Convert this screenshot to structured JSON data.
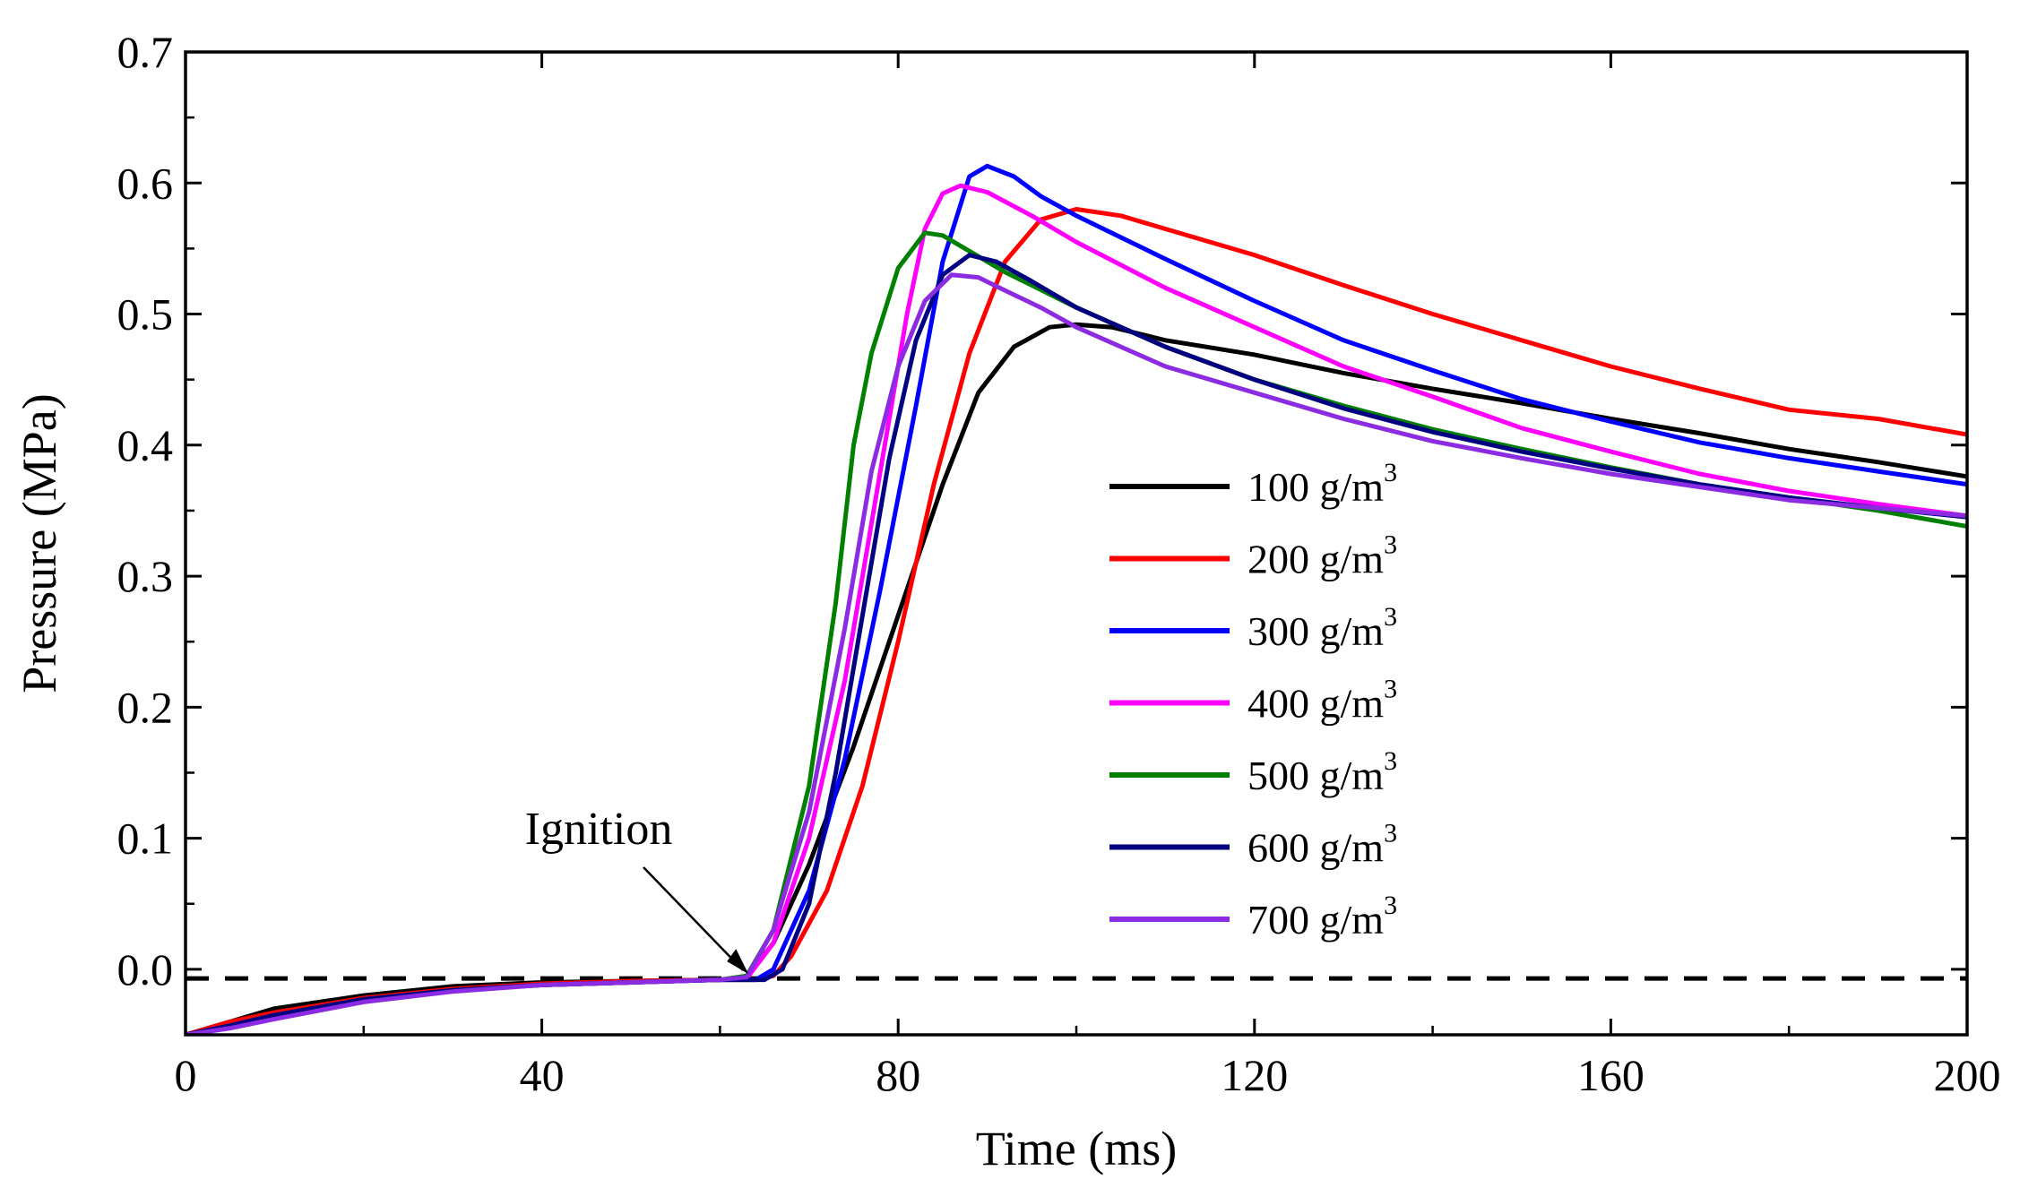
{
  "chart_data": {
    "type": "line",
    "title": "",
    "xlabel": "Time (ms)",
    "ylabel": "Pressure (MPa)",
    "xlim": [
      0,
      200
    ],
    "ylim": [
      -0.05,
      0.7
    ],
    "x_ticks": [
      0,
      40,
      80,
      120,
      160,
      200
    ],
    "x_tick_labels": [
      "0",
      "40",
      "80",
      "120",
      "160",
      "200"
    ],
    "y_ticks": [
      0.0,
      0.1,
      0.2,
      0.3,
      0.4,
      0.5,
      0.6,
      0.7
    ],
    "y_tick_labels": [
      "0.0",
      "0.1",
      "0.2",
      "0.3",
      "0.4",
      "0.5",
      "0.6",
      "0.7"
    ],
    "grid": false,
    "legend_position": "center-right",
    "legend_unit_base": "g/m",
    "legend_unit_sup": "3",
    "reference_line": {
      "y": -0.007,
      "style": "dashed",
      "color": "#000000"
    },
    "annotation": {
      "text": "Ignition",
      "x": 63,
      "y": -0.005
    },
    "series": [
      {
        "name": "100",
        "color": "#000000",
        "points": [
          [
            0,
            -0.05
          ],
          [
            5,
            -0.04
          ],
          [
            10,
            -0.03
          ],
          [
            20,
            -0.02
          ],
          [
            30,
            -0.013
          ],
          [
            40,
            -0.01
          ],
          [
            50,
            -0.009
          ],
          [
            60,
            -0.008
          ],
          [
            63,
            -0.006
          ],
          [
            66,
            0.02
          ],
          [
            70,
            0.08
          ],
          [
            75,
            0.17
          ],
          [
            80,
            0.27
          ],
          [
            85,
            0.37
          ],
          [
            89,
            0.44
          ],
          [
            93,
            0.475
          ],
          [
            97,
            0.49
          ],
          [
            100,
            0.492
          ],
          [
            104,
            0.49
          ],
          [
            110,
            0.48
          ],
          [
            120,
            0.469
          ],
          [
            130,
            0.455
          ],
          [
            140,
            0.443
          ],
          [
            150,
            0.432
          ],
          [
            160,
            0.42
          ],
          [
            170,
            0.409
          ],
          [
            180,
            0.397
          ],
          [
            190,
            0.387
          ],
          [
            200,
            0.376
          ]
        ]
      },
      {
        "name": "200",
        "color": "#ff0000",
        "points": [
          [
            0,
            -0.05
          ],
          [
            5,
            -0.04
          ],
          [
            10,
            -0.033
          ],
          [
            20,
            -0.022
          ],
          [
            30,
            -0.015
          ],
          [
            40,
            -0.011
          ],
          [
            50,
            -0.009
          ],
          [
            60,
            -0.008
          ],
          [
            64,
            -0.008
          ],
          [
            66,
            -0.005
          ],
          [
            68,
            0.01
          ],
          [
            72,
            0.06
          ],
          [
            76,
            0.14
          ],
          [
            80,
            0.25
          ],
          [
            84,
            0.37
          ],
          [
            88,
            0.47
          ],
          [
            92,
            0.54
          ],
          [
            96,
            0.572
          ],
          [
            100,
            0.58
          ],
          [
            105,
            0.575
          ],
          [
            110,
            0.565
          ],
          [
            120,
            0.545
          ],
          [
            130,
            0.522
          ],
          [
            140,
            0.5
          ],
          [
            150,
            0.48
          ],
          [
            160,
            0.46
          ],
          [
            170,
            0.443
          ],
          [
            180,
            0.427
          ],
          [
            190,
            0.42
          ],
          [
            200,
            0.408
          ]
        ]
      },
      {
        "name": "300",
        "color": "#0000ff",
        "points": [
          [
            0,
            -0.05
          ],
          [
            5,
            -0.043
          ],
          [
            10,
            -0.035
          ],
          [
            20,
            -0.023
          ],
          [
            30,
            -0.016
          ],
          [
            40,
            -0.012
          ],
          [
            50,
            -0.01
          ],
          [
            60,
            -0.008
          ],
          [
            64,
            -0.008
          ],
          [
            66,
            0.0
          ],
          [
            70,
            0.06
          ],
          [
            74,
            0.16
          ],
          [
            78,
            0.29
          ],
          [
            82,
            0.43
          ],
          [
            85,
            0.54
          ],
          [
            88,
            0.605
          ],
          [
            90,
            0.613
          ],
          [
            93,
            0.605
          ],
          [
            96,
            0.59
          ],
          [
            100,
            0.575
          ],
          [
            110,
            0.542
          ],
          [
            120,
            0.51
          ],
          [
            130,
            0.48
          ],
          [
            140,
            0.457
          ],
          [
            150,
            0.435
          ],
          [
            160,
            0.418
          ],
          [
            170,
            0.402
          ],
          [
            180,
            0.39
          ],
          [
            190,
            0.38
          ],
          [
            200,
            0.37
          ]
        ]
      },
      {
        "name": "400",
        "color": "#ff00ff",
        "points": [
          [
            0,
            -0.05
          ],
          [
            5,
            -0.043
          ],
          [
            10,
            -0.035
          ],
          [
            20,
            -0.023
          ],
          [
            30,
            -0.016
          ],
          [
            40,
            -0.012
          ],
          [
            50,
            -0.01
          ],
          [
            60,
            -0.008
          ],
          [
            63,
            -0.007
          ],
          [
            66,
            0.02
          ],
          [
            70,
            0.1
          ],
          [
            74,
            0.22
          ],
          [
            78,
            0.38
          ],
          [
            81,
            0.5
          ],
          [
            83,
            0.565
          ],
          [
            85,
            0.592
          ],
          [
            87,
            0.598
          ],
          [
            90,
            0.593
          ],
          [
            95,
            0.575
          ],
          [
            100,
            0.555
          ],
          [
            110,
            0.52
          ],
          [
            120,
            0.49
          ],
          [
            130,
            0.46
          ],
          [
            140,
            0.437
          ],
          [
            150,
            0.413
          ],
          [
            160,
            0.395
          ],
          [
            170,
            0.378
          ],
          [
            180,
            0.365
          ],
          [
            190,
            0.355
          ],
          [
            200,
            0.346
          ]
        ]
      },
      {
        "name": "500",
        "color": "#008000",
        "points": [
          [
            0,
            -0.05
          ],
          [
            5,
            -0.043
          ],
          [
            10,
            -0.035
          ],
          [
            20,
            -0.023
          ],
          [
            30,
            -0.016
          ],
          [
            40,
            -0.012
          ],
          [
            50,
            -0.01
          ],
          [
            60,
            -0.008
          ],
          [
            63,
            -0.005
          ],
          [
            66,
            0.03
          ],
          [
            70,
            0.14
          ],
          [
            73,
            0.28
          ],
          [
            75,
            0.4
          ],
          [
            77,
            0.47
          ],
          [
            80,
            0.535
          ],
          [
            83,
            0.562
          ],
          [
            85,
            0.56
          ],
          [
            88,
            0.548
          ],
          [
            92,
            0.532
          ],
          [
            100,
            0.505
          ],
          [
            110,
            0.475
          ],
          [
            120,
            0.45
          ],
          [
            130,
            0.43
          ],
          [
            140,
            0.412
          ],
          [
            150,
            0.397
          ],
          [
            160,
            0.383
          ],
          [
            170,
            0.37
          ],
          [
            180,
            0.36
          ],
          [
            190,
            0.35
          ],
          [
            200,
            0.338
          ]
        ]
      },
      {
        "name": "600",
        "color": "#000080",
        "points": [
          [
            0,
            -0.05
          ],
          [
            5,
            -0.043
          ],
          [
            10,
            -0.035
          ],
          [
            20,
            -0.023
          ],
          [
            30,
            -0.016
          ],
          [
            40,
            -0.012
          ],
          [
            50,
            -0.01
          ],
          [
            60,
            -0.008
          ],
          [
            65,
            -0.008
          ],
          [
            67,
            0.0
          ],
          [
            70,
            0.05
          ],
          [
            73,
            0.15
          ],
          [
            76,
            0.27
          ],
          [
            79,
            0.39
          ],
          [
            82,
            0.48
          ],
          [
            85,
            0.53
          ],
          [
            88,
            0.545
          ],
          [
            91,
            0.54
          ],
          [
            95,
            0.525
          ],
          [
            100,
            0.505
          ],
          [
            110,
            0.475
          ],
          [
            120,
            0.45
          ],
          [
            130,
            0.428
          ],
          [
            140,
            0.41
          ],
          [
            150,
            0.395
          ],
          [
            160,
            0.382
          ],
          [
            170,
            0.37
          ],
          [
            180,
            0.36
          ],
          [
            190,
            0.352
          ],
          [
            200,
            0.345
          ]
        ]
      },
      {
        "name": "700",
        "color": "#8b2be2",
        "points": [
          [
            0,
            -0.05
          ],
          [
            5,
            -0.045
          ],
          [
            10,
            -0.038
          ],
          [
            20,
            -0.025
          ],
          [
            30,
            -0.017
          ],
          [
            40,
            -0.012
          ],
          [
            50,
            -0.01
          ],
          [
            60,
            -0.008
          ],
          [
            63,
            -0.006
          ],
          [
            66,
            0.03
          ],
          [
            70,
            0.12
          ],
          [
            74,
            0.26
          ],
          [
            77,
            0.38
          ],
          [
            80,
            0.46
          ],
          [
            83,
            0.51
          ],
          [
            86,
            0.53
          ],
          [
            89,
            0.528
          ],
          [
            92,
            0.518
          ],
          [
            96,
            0.505
          ],
          [
            100,
            0.49
          ],
          [
            110,
            0.46
          ],
          [
            120,
            0.44
          ],
          [
            130,
            0.42
          ],
          [
            140,
            0.403
          ],
          [
            150,
            0.39
          ],
          [
            160,
            0.378
          ],
          [
            170,
            0.368
          ],
          [
            180,
            0.358
          ],
          [
            190,
            0.352
          ],
          [
            200,
            0.346
          ]
        ]
      }
    ]
  }
}
